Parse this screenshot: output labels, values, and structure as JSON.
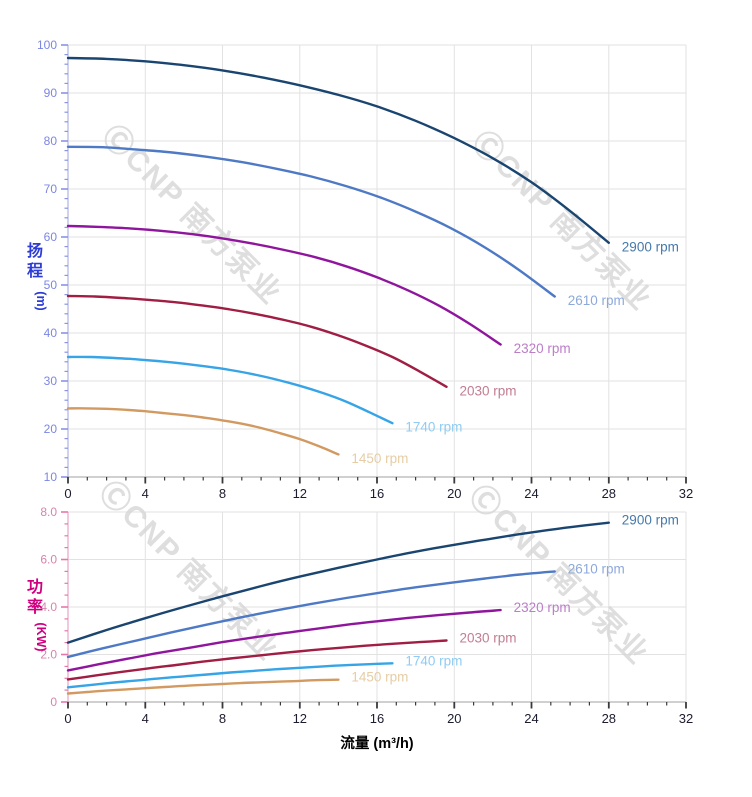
{
  "page": {
    "background": "#ffffff"
  },
  "watermark": {
    "text": "ⒸCNP 南方泵业",
    "color": "#d6d6d6"
  },
  "chart_data": [
    {
      "type": "line",
      "title": "",
      "ylabel": "扬程 (m)",
      "ylabel_cn": "扬程",
      "ylabel_unit": "(m)",
      "xlabel": "流量 (m³/h)",
      "xlim": [
        0,
        32
      ],
      "ylim": [
        10,
        100
      ],
      "x_major": 4,
      "x_minor": 1,
      "y_major": 10,
      "y_minor": 2,
      "x_tick_labels": [
        "0",
        "4",
        "8",
        "12",
        "16",
        "20",
        "24",
        "28",
        "32"
      ],
      "y_tick_labels": [
        "10",
        "20",
        "30",
        "40",
        "50",
        "60",
        "70",
        "80",
        "90",
        "100"
      ],
      "grid": true,
      "legend_position": "curve-ends",
      "axis_colors": {
        "y_title": "#2c3cd4",
        "y_label": "#7b86e4",
        "y_tick": "#8a93e8",
        "y_spine": "#b9bfe8",
        "x_label": "#1c1c30",
        "x_tick": "#3a3a3a",
        "x_spine": "#b4b4b4",
        "grid": "#e2e2e2"
      },
      "series": [
        {
          "name": "2900 rpm",
          "curve_color": "#1a4570",
          "label_color": "#4679ab",
          "x": [
            0,
            2,
            4,
            6,
            8,
            10,
            12,
            14,
            16,
            18,
            20,
            22,
            24,
            26,
            28
          ],
          "y": [
            97.3,
            97.1,
            96.6,
            95.8,
            94.7,
            93.3,
            91.6,
            89.6,
            87.2,
            84.2,
            80.6,
            76.4,
            71.4,
            65.4,
            58.8
          ]
        },
        {
          "name": "2610 rpm",
          "curve_color": "#4e79c5",
          "label_color": "#8da9db",
          "x": [
            0,
            1.8,
            3.6,
            5.4,
            7.2,
            9,
            10.8,
            12.6,
            14.4,
            16.2,
            18,
            19.8,
            21.6,
            23.4,
            25.2
          ],
          "y": [
            78.8,
            78.7,
            78.2,
            77.6,
            76.7,
            75.6,
            74.2,
            72.6,
            70.6,
            68.2,
            65.3,
            61.9,
            57.8,
            53.0,
            47.6
          ]
        },
        {
          "name": "2320 rpm",
          "curve_color": "#8f169c",
          "label_color": "#bb7ec7",
          "x": [
            0,
            1.6,
            3.2,
            4.8,
            6.4,
            8,
            9.6,
            11.2,
            12.8,
            14.4,
            16,
            17.6,
            19.2,
            20.8,
            22.4
          ],
          "y": [
            62.3,
            62.1,
            61.8,
            61.3,
            60.6,
            59.7,
            58.6,
            57.3,
            55.8,
            53.9,
            51.6,
            48.9,
            45.7,
            41.9,
            37.6
          ]
        },
        {
          "name": "2030 rpm",
          "curve_color": "#a01d43",
          "label_color": "#c27d92",
          "x": [
            0,
            1.4,
            2.8,
            4.2,
            5.6,
            7,
            8.4,
            9.8,
            11.2,
            12.6,
            14,
            15.4,
            16.8,
            18.2,
            19.6
          ],
          "y": [
            47.7,
            47.6,
            47.3,
            46.9,
            46.4,
            45.7,
            44.9,
            43.9,
            42.7,
            41.3,
            39.5,
            37.4,
            35.0,
            32.0,
            28.8
          ]
        },
        {
          "name": "1740 rpm",
          "curve_color": "#36a4e6",
          "label_color": "#90cbf2",
          "x": [
            0,
            1.2,
            2.4,
            3.6,
            4.8,
            6,
            7.2,
            8.4,
            9.6,
            10.8,
            12,
            13.2,
            14.4,
            15.6,
            16.8
          ],
          "y": [
            35.0,
            35.0,
            34.8,
            34.5,
            34.1,
            33.6,
            33.0,
            32.3,
            31.4,
            30.3,
            29.0,
            27.5,
            25.7,
            23.5,
            21.2
          ]
        },
        {
          "name": "1450 rpm",
          "curve_color": "#d29a61",
          "label_color": "#e6cda6",
          "x": [
            0,
            1,
            2,
            3,
            4,
            5,
            6,
            7,
            8,
            9,
            10,
            11,
            12,
            13,
            14
          ],
          "y": [
            24.3,
            24.3,
            24.2,
            24.0,
            23.7,
            23.3,
            22.9,
            22.4,
            21.8,
            21.1,
            20.2,
            19.1,
            17.9,
            16.4,
            14.7
          ]
        }
      ]
    },
    {
      "type": "line",
      "title": "",
      "ylabel": "功率 (KW)",
      "ylabel_cn": "功率",
      "ylabel_unit": "(KW)",
      "xlabel": "流量 (m³/h)",
      "xlim": [
        0,
        32
      ],
      "ylim": [
        0,
        8
      ],
      "x_major": 4,
      "x_minor": 1,
      "y_major": 2,
      "y_minor": 0.5,
      "x_tick_labels": [
        "0",
        "4",
        "8",
        "12",
        "16",
        "20",
        "24",
        "28",
        "32"
      ],
      "y_tick_labels": [
        "0",
        "2.0",
        "4.0",
        "6.0",
        "8.0"
      ],
      "grid": true,
      "legend_position": "curve-ends",
      "axis_colors": {
        "y_title": "#cf0080",
        "y_label": "#d783ad",
        "y_tick": "#e776ad",
        "y_spine": "#e9b2cd",
        "x_label": "#1c1c30",
        "x_tick": "#3a3a3a",
        "x_spine": "#b4b4b4",
        "grid": "#e2e2e2"
      },
      "series": [
        {
          "name": "2900 rpm",
          "curve_color": "#1a4570",
          "label_color": "#4679ab",
          "x": [
            0,
            2,
            4,
            6,
            8,
            10,
            12,
            14,
            16,
            18,
            20,
            22,
            24,
            26,
            28
          ],
          "y": [
            2.5,
            3.03,
            3.53,
            4.0,
            4.45,
            4.88,
            5.28,
            5.65,
            6.0,
            6.33,
            6.62,
            6.89,
            7.14,
            7.36,
            7.55
          ]
        },
        {
          "name": "2610 rpm",
          "curve_color": "#4e79c5",
          "label_color": "#8da9db",
          "x": [
            0,
            1.8,
            3.6,
            5.4,
            7.2,
            9,
            10.8,
            12.6,
            14.4,
            16.2,
            18,
            19.8,
            21.6,
            23.4,
            25.2
          ],
          "y": [
            1.9,
            2.26,
            2.6,
            2.94,
            3.26,
            3.57,
            3.86,
            4.13,
            4.38,
            4.61,
            4.83,
            5.02,
            5.2,
            5.37,
            5.5
          ]
        },
        {
          "name": "2320 rpm",
          "curve_color": "#8f169c",
          "label_color": "#bb7ec7",
          "x": [
            0,
            1.6,
            3.2,
            4.8,
            6.4,
            8,
            9.6,
            11.2,
            12.8,
            14.4,
            16,
            17.6,
            19.2,
            20.8,
            22.4
          ],
          "y": [
            1.33,
            1.59,
            1.84,
            2.08,
            2.3,
            2.52,
            2.72,
            2.9,
            3.08,
            3.25,
            3.4,
            3.54,
            3.66,
            3.77,
            3.87
          ]
        },
        {
          "name": "2030 rpm",
          "curve_color": "#a01d43",
          "label_color": "#c27d92",
          "x": [
            0,
            1.4,
            2.8,
            4.2,
            5.6,
            7,
            8.4,
            9.8,
            11.2,
            12.6,
            14,
            15.4,
            16.8,
            18.2,
            19.6
          ],
          "y": [
            0.95,
            1.11,
            1.27,
            1.42,
            1.56,
            1.7,
            1.83,
            1.95,
            2.07,
            2.18,
            2.28,
            2.37,
            2.45,
            2.52,
            2.59
          ]
        },
        {
          "name": "1740 rpm",
          "curve_color": "#36a4e6",
          "label_color": "#90cbf2",
          "x": [
            0,
            1.2,
            2.4,
            3.6,
            4.8,
            6,
            7.2,
            8.4,
            9.6,
            10.8,
            12,
            13.2,
            14.4,
            15.6,
            16.8
          ],
          "y": [
            0.62,
            0.72,
            0.82,
            0.91,
            1.0,
            1.08,
            1.16,
            1.24,
            1.31,
            1.38,
            1.44,
            1.5,
            1.55,
            1.59,
            1.63
          ]
        },
        {
          "name": "1450 rpm",
          "curve_color": "#d29a61",
          "label_color": "#e6cda6",
          "x": [
            0,
            1,
            2,
            3,
            4,
            5,
            6,
            7,
            8,
            9,
            10,
            11,
            12,
            13,
            14
          ],
          "y": [
            0.36,
            0.42,
            0.48,
            0.53,
            0.58,
            0.63,
            0.68,
            0.72,
            0.76,
            0.8,
            0.83,
            0.86,
            0.89,
            0.92,
            0.94
          ]
        }
      ]
    }
  ]
}
